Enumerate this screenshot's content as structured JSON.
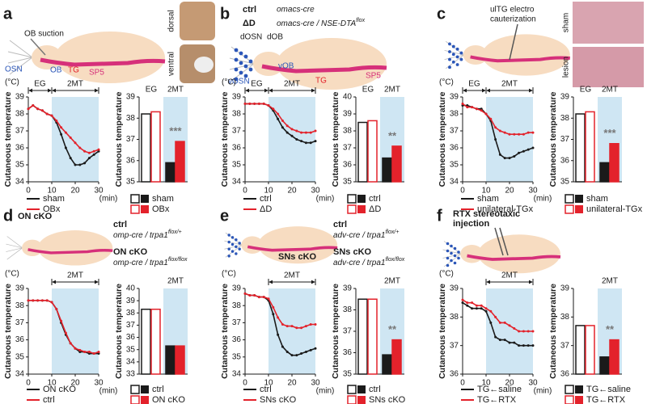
{
  "panels": [
    {
      "letter": "a",
      "labels": {
        "suction": "OB suction",
        "osn": "OSN",
        "ob": "OB",
        "tg": "TG",
        "sp5": "SP5",
        "dorsal": "dorsal",
        "ventral": "ventral"
      }
    },
    {
      "letter": "b",
      "genotypes": [
        {
          "name": "ctrl",
          "line": "omacs-cre"
        },
        {
          "name": "ΔD",
          "line": "omacs-cre / NSE-DTA",
          "sup": "flox"
        }
      ],
      "labels": {
        "dosn": "dOSN",
        "dob": "dOB",
        "vob": "vOB",
        "vosn": "vOSN",
        "tg": "TG",
        "sp5": "SP5"
      }
    },
    {
      "letter": "c",
      "caption": [
        "ulTG electro",
        "cauterization"
      ],
      "labels": {
        "sham": "sham",
        "lesion": "lesion"
      }
    },
    {
      "letter": "d",
      "caption": [
        "ON cKO"
      ],
      "genotypes": [
        {
          "name": "ctrl",
          "line": "omp-cre / trpa1",
          "sup": "flox/+"
        },
        {
          "name": "ON cKO",
          "line": "omp-cre / trpa1",
          "sup": "flox/flox"
        }
      ]
    },
    {
      "letter": "e",
      "caption": [
        "SNs cKO"
      ],
      "genotypes": [
        {
          "name": "ctrl",
          "line": "adv-cre / trpa1",
          "sup": "flox/+"
        },
        {
          "name": "SNs cKO",
          "line": "adv-cre / trpa1",
          "sup": "flox/flox"
        }
      ]
    },
    {
      "letter": "f",
      "caption": [
        "RTX stereotaxic",
        "injection"
      ]
    }
  ],
  "chart_data": [
    {
      "type": "line",
      "y_label": "Cutaneous temperature",
      "y_unit": "(°C)",
      "x_unit": "(min)",
      "xlim": [
        0,
        30
      ],
      "xticks": [
        0,
        10,
        20,
        30
      ],
      "ylim": [
        34,
        39
      ],
      "yticks": [
        34,
        35,
        36,
        37,
        38,
        39
      ],
      "spans": [
        {
          "label": "EG",
          "range": [
            0,
            10
          ],
          "shaded": false
        },
        {
          "label": "2MT",
          "range": [
            10,
            30
          ],
          "shaded": true
        }
      ],
      "x": [
        0,
        2,
        4,
        6,
        8,
        10,
        12,
        14,
        16,
        18,
        20,
        22,
        24,
        26,
        28,
        30
      ],
      "series": [
        {
          "name": "sham",
          "color": "#1a1a1a",
          "values": [
            38.3,
            38.5,
            38.3,
            38.2,
            38.0,
            37.9,
            37.5,
            36.8,
            36.0,
            35.4,
            35.0,
            35.0,
            35.1,
            35.4,
            35.6,
            35.8
          ]
        },
        {
          "name": "OBx",
          "color": "#e3222b",
          "values": [
            38.3,
            38.5,
            38.3,
            38.2,
            38.0,
            37.9,
            37.6,
            37.2,
            36.9,
            36.6,
            36.3,
            36.0,
            35.8,
            35.7,
            35.8,
            35.9
          ]
        }
      ]
    },
    {
      "type": "bar",
      "y_label": "Cutaneous temperature",
      "ylim": [
        35,
        39
      ],
      "yticks": [
        35,
        36,
        37,
        38,
        39
      ],
      "categories": [
        "EG",
        "2MT"
      ],
      "shaded": [
        false,
        true
      ],
      "open": [
        true,
        false
      ],
      "series": [
        {
          "name": "sham",
          "color": "#1a1a1a",
          "values": [
            38.2,
            35.9
          ]
        },
        {
          "name": "OBx",
          "color": "#e3222b",
          "values": [
            38.3,
            36.9
          ]
        }
      ],
      "annotations": [
        {
          "text": "***",
          "category": 1
        }
      ]
    },
    {
      "type": "line",
      "y_label": "Cutaneous temperature",
      "y_unit": "(°C)",
      "x_unit": "(min)",
      "xlim": [
        0,
        30
      ],
      "xticks": [
        0,
        10,
        20,
        30
      ],
      "ylim": [
        34,
        39
      ],
      "yticks": [
        34,
        35,
        36,
        37,
        38,
        39
      ],
      "spans": [
        {
          "label": "EG",
          "range": [
            0,
            10
          ],
          "shaded": false
        },
        {
          "label": "2MT",
          "range": [
            10,
            30
          ],
          "shaded": true
        }
      ],
      "x": [
        0,
        2,
        4,
        6,
        8,
        10,
        12,
        14,
        16,
        18,
        20,
        22,
        24,
        26,
        28,
        30
      ],
      "series": [
        {
          "name": "ctrl",
          "color": "#1a1a1a",
          "values": [
            38.6,
            38.6,
            38.6,
            38.6,
            38.6,
            38.5,
            38.2,
            37.7,
            37.2,
            36.9,
            36.7,
            36.5,
            36.4,
            36.3,
            36.3,
            36.4
          ]
        },
        {
          "name": "ΔD",
          "color": "#e3222b",
          "values": [
            38.6,
            38.6,
            38.6,
            38.6,
            38.6,
            38.5,
            38.3,
            38.0,
            37.6,
            37.3,
            37.1,
            37.0,
            36.9,
            36.9,
            36.9,
            37.0
          ]
        }
      ]
    },
    {
      "type": "bar",
      "y_label": "Cutaneous temperature",
      "ylim": [
        35,
        40
      ],
      "yticks": [
        35,
        36,
        37,
        38,
        39,
        40
      ],
      "categories": [
        "EG",
        "2MT"
      ],
      "shaded": [
        false,
        true
      ],
      "open": [
        true,
        false
      ],
      "series": [
        {
          "name": "ctrl",
          "color": "#1a1a1a",
          "values": [
            38.5,
            36.4
          ]
        },
        {
          "name": "ΔD",
          "color": "#e3222b",
          "values": [
            38.6,
            37.1
          ]
        }
      ],
      "annotations": [
        {
          "text": "**",
          "category": 1
        }
      ]
    },
    {
      "type": "line",
      "y_label": "Cutaneous temperature",
      "y_unit": "(°C)",
      "x_unit": "(min)",
      "xlim": [
        0,
        30
      ],
      "xticks": [
        0,
        10,
        20,
        30
      ],
      "ylim": [
        34,
        39
      ],
      "yticks": [
        34,
        35,
        36,
        37,
        38,
        39
      ],
      "spans": [
        {
          "label": "EG",
          "range": [
            0,
            10
          ],
          "shaded": false
        },
        {
          "label": "2MT",
          "range": [
            10,
            30
          ],
          "shaded": true
        }
      ],
      "x": [
        0,
        2,
        4,
        6,
        8,
        10,
        12,
        14,
        16,
        18,
        20,
        22,
        24,
        26,
        28,
        30
      ],
      "series": [
        {
          "name": "sham",
          "color": "#1a1a1a",
          "values": [
            38.5,
            38.5,
            38.4,
            38.3,
            38.3,
            38.0,
            37.6,
            36.5,
            35.6,
            35.4,
            35.4,
            35.5,
            35.7,
            35.8,
            35.9,
            36.0
          ]
        },
        {
          "name": "unilateral-TGx",
          "color": "#e3222b",
          "values": [
            38.6,
            38.4,
            38.4,
            38.3,
            38.2,
            38.0,
            37.7,
            37.2,
            37.0,
            36.9,
            36.8,
            36.8,
            36.8,
            36.8,
            36.9,
            36.9
          ]
        }
      ]
    },
    {
      "type": "bar",
      "y_label": "Cutaneous temperature",
      "ylim": [
        35,
        39
      ],
      "yticks": [
        35,
        36,
        37,
        38,
        39
      ],
      "categories": [
        "EG",
        "2MT"
      ],
      "shaded": [
        false,
        true
      ],
      "open": [
        true,
        false
      ],
      "series": [
        {
          "name": "sham",
          "color": "#1a1a1a",
          "values": [
            38.2,
            35.9
          ]
        },
        {
          "name": "unilateral-TGx",
          "color": "#e3222b",
          "values": [
            38.3,
            36.8
          ]
        }
      ],
      "annotations": [
        {
          "text": "***",
          "category": 1
        }
      ]
    },
    {
      "type": "line",
      "y_label": "Cutaneous temperature",
      "y_unit": "(°C)",
      "x_unit": "(min)",
      "xlim": [
        0,
        30
      ],
      "xticks": [
        0,
        10,
        20,
        30
      ],
      "ylim": [
        34,
        39
      ],
      "yticks": [
        34,
        35,
        36,
        37,
        38,
        39
      ],
      "spans": [
        {
          "label": "2MT",
          "range": [
            10,
            30
          ],
          "shaded": true
        }
      ],
      "x": [
        0,
        2,
        4,
        6,
        8,
        10,
        12,
        14,
        16,
        18,
        20,
        22,
        24,
        26,
        28,
        30
      ],
      "series": [
        {
          "name": "ON cKO",
          "color": "#1a1a1a",
          "values": [
            38.3,
            38.3,
            38.3,
            38.3,
            38.3,
            38.2,
            37.8,
            37.0,
            36.3,
            35.8,
            35.5,
            35.3,
            35.3,
            35.2,
            35.2,
            35.2
          ]
        },
        {
          "name": "ctrl",
          "color": "#e3222b",
          "values": [
            38.3,
            38.3,
            38.3,
            38.3,
            38.3,
            38.2,
            37.8,
            37.1,
            36.4,
            35.8,
            35.5,
            35.4,
            35.3,
            35.3,
            35.2,
            35.3
          ]
        }
      ]
    },
    {
      "type": "bar",
      "y_label": "Cutaneous temperature",
      "ylim": [
        33,
        40
      ],
      "yticks": [
        33,
        34,
        35,
        36,
        37,
        38,
        39,
        40
      ],
      "categories": [
        null,
        "2MT"
      ],
      "shaded": [
        false,
        true
      ],
      "open": [
        true,
        false
      ],
      "series": [
        {
          "name": "ctrl",
          "color": "#1a1a1a",
          "values": [
            38.3,
            35.3
          ]
        },
        {
          "name": "ON cKO",
          "color": "#e3222b",
          "values": [
            38.3,
            35.3
          ]
        }
      ],
      "annotations": []
    },
    {
      "type": "line",
      "y_label": "Cutaneous temperature",
      "y_unit": "(°C)",
      "x_unit": "(min)",
      "xlim": [
        0,
        30
      ],
      "xticks": [
        0,
        10,
        20,
        30
      ],
      "ylim": [
        34,
        39
      ],
      "yticks": [
        34,
        35,
        36,
        37,
        38,
        39
      ],
      "spans": [
        {
          "label": "2MT",
          "range": [
            10,
            30
          ],
          "shaded": true
        }
      ],
      "x": [
        0,
        2,
        4,
        6,
        8,
        10,
        12,
        14,
        16,
        18,
        20,
        22,
        24,
        26,
        28,
        30
      ],
      "series": [
        {
          "name": "ctrl",
          "color": "#1a1a1a",
          "values": [
            38.7,
            38.6,
            38.6,
            38.5,
            38.5,
            38.3,
            37.5,
            36.3,
            35.6,
            35.3,
            35.1,
            35.1,
            35.2,
            35.3,
            35.4,
            35.5
          ]
        },
        {
          "name": "SNs cKO",
          "color": "#e3222b",
          "values": [
            38.7,
            38.6,
            38.6,
            38.5,
            38.5,
            38.4,
            37.9,
            37.3,
            36.9,
            36.8,
            36.8,
            36.7,
            36.7,
            36.8,
            36.9,
            36.9
          ]
        }
      ]
    },
    {
      "type": "bar",
      "y_label": "Cutaneous temperature",
      "ylim": [
        35,
        39
      ],
      "yticks": [
        35,
        36,
        37,
        38,
        39
      ],
      "categories": [
        null,
        "2MT"
      ],
      "shaded": [
        false,
        true
      ],
      "open": [
        true,
        false
      ],
      "series": [
        {
          "name": "ctrl",
          "color": "#1a1a1a",
          "values": [
            38.5,
            35.9
          ]
        },
        {
          "name": "SNs cKO",
          "color": "#e3222b",
          "values": [
            38.5,
            36.6
          ]
        }
      ],
      "annotations": [
        {
          "text": "**",
          "category": 1
        }
      ]
    },
    {
      "type": "line",
      "y_label": "Cutaneous temperature",
      "y_unit": "(°C)",
      "x_unit": "(min)",
      "xlim": [
        0,
        30
      ],
      "xticks": [
        0,
        10,
        20,
        30
      ],
      "ylim": [
        36,
        39
      ],
      "yticks": [
        36,
        37,
        38,
        39
      ],
      "spans": [
        {
          "label": "2MT",
          "range": [
            10,
            30
          ],
          "shaded": true
        }
      ],
      "x": [
        0,
        2,
        4,
        6,
        8,
        10,
        12,
        14,
        16,
        18,
        20,
        22,
        24,
        26,
        28,
        30
      ],
      "series": [
        {
          "name": "TG←saline",
          "color": "#1a1a1a",
          "values": [
            38.5,
            38.4,
            38.3,
            38.3,
            38.3,
            38.2,
            37.8,
            37.3,
            37.2,
            37.2,
            37.1,
            37.1,
            37.0,
            37.0,
            37.0,
            37.0
          ]
        },
        {
          "name": "TG←RTX",
          "color": "#e3222b",
          "values": [
            38.6,
            38.5,
            38.5,
            38.4,
            38.4,
            38.3,
            38.2,
            38.0,
            37.8,
            37.8,
            37.7,
            37.6,
            37.5,
            37.5,
            37.5,
            37.5
          ]
        }
      ]
    },
    {
      "type": "bar",
      "y_label": "Cutaneous temperature",
      "ylim": [
        36,
        39
      ],
      "yticks": [
        36,
        37,
        38,
        39
      ],
      "categories": [
        null,
        "2MT"
      ],
      "shaded": [
        false,
        true
      ],
      "open": [
        true,
        false
      ],
      "series": [
        {
          "name": "TG←saline",
          "color": "#1a1a1a",
          "values": [
            37.7,
            36.6
          ]
        },
        {
          "name": "TG←RTX",
          "color": "#e3222b",
          "values": [
            37.7,
            37.2
          ]
        }
      ],
      "annotations": [
        {
          "text": "**",
          "category": 1
        }
      ]
    }
  ]
}
